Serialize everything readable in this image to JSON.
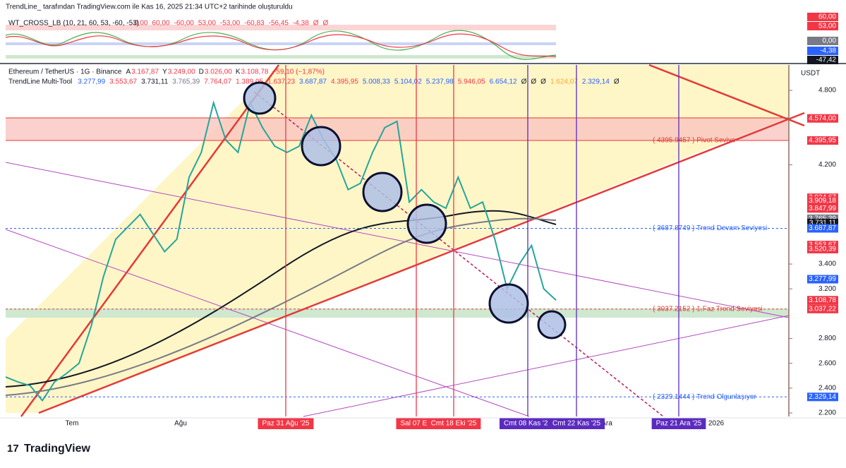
{
  "header": "TrendLine_ tarafından TradingView.com ile Kas 16, 2025 21:34 UTC+2 tarihinde oluşturuldu",
  "indicator": {
    "name": "WT_CROSS_LB (10, 21, 60, 53, -60, -53)",
    "values": [
      "0,00",
      "60,00",
      "-60,00",
      "53,00",
      "-53,00",
      "-60,83",
      "-56,45",
      "-4,38",
      "Ø",
      "Ø"
    ],
    "badges": [
      {
        "label": "60,00",
        "color": "#f23645"
      },
      {
        "label": "53,00",
        "color": "#f23645"
      },
      {
        "label": "0,00",
        "color": "#787b86"
      },
      {
        "label": "-4,38",
        "color": "#2962ff"
      },
      {
        "label": "-47,42",
        "color": "#131722"
      }
    ]
  },
  "symbol": {
    "name": "Ethereum / TetherUS · 1G · Binance",
    "ohlc": [
      {
        "key": "A",
        "value": "3.167,87"
      },
      {
        "key": "Y",
        "value": "3.249,00"
      },
      {
        "key": "D",
        "value": "3.026,00"
      },
      {
        "key": "K",
        "value": "3.108,78"
      }
    ],
    "change": "−59,10 (−1,87%)"
  },
  "multitool": {
    "name": "TrendLine Multi-Tool",
    "values": [
      "3.277,99",
      "3.553,67",
      "3.731,11",
      "3.765,39",
      "7.764,07",
      "1.389,05",
      "1.637,23",
      "3.687,87",
      "4.395,95",
      "5.008,33",
      "5.104,02",
      "5.237,98",
      "5.946,05",
      "6.654,12",
      "Ø",
      "Ø",
      "Ø",
      "1.624,07",
      "2.329,14",
      "Ø"
    ]
  },
  "currency": "USDT",
  "price_axis": {
    "ticks": [
      {
        "value": 4800,
        "label": "4.800"
      },
      {
        "value": 4200,
        "label": "4.200"
      },
      {
        "value": 3400,
        "label": "3.400"
      },
      {
        "value": 3200,
        "label": "3.200"
      },
      {
        "value": 2800,
        "label": "2.800"
      },
      {
        "value": 2600,
        "label": "2.600"
      },
      {
        "value": 2400,
        "label": "2.400"
      },
      {
        "value": 2200,
        "label": "2.200"
      }
    ],
    "badges": [
      {
        "value": 4574,
        "label": "4.574,00",
        "color": "#f23645"
      },
      {
        "value": 4395.95,
        "label": "4.395,95",
        "color": "#f23645"
      },
      {
        "value": 3934.67,
        "label": "3.934,67",
        "color": "#f23645"
      },
      {
        "value": 3909.18,
        "label": "3.909,18",
        "color": "#f23645"
      },
      {
        "value": 3847.99,
        "label": "3.847,99",
        "color": "#f23645"
      },
      {
        "value": 3765.39,
        "label": "3.765,39",
        "color": "#787b86"
      },
      {
        "value": 3731.11,
        "label": "3.731,11",
        "color": "#131722"
      },
      {
        "value": 3687.87,
        "label": "3.687,87",
        "color": "#2962ff"
      },
      {
        "value": 3553.67,
        "label": "3.553,67",
        "color": "#f23645"
      },
      {
        "value": 3520.39,
        "label": "3.520,39",
        "color": "#f23645"
      },
      {
        "value": 3277.99,
        "label": "3.277,99",
        "color": "#2962ff"
      },
      {
        "value": 3108.78,
        "label": "3.108,78",
        "color": "#f23645"
      },
      {
        "value": 3037.22,
        "label": "3.037,22",
        "color": "#f23645"
      },
      {
        "value": 2329.14,
        "label": "2.329,14",
        "color": "#2962ff"
      }
    ],
    "countdown": "04:25:55"
  },
  "annotations": [
    {
      "text": "( 4395.9457 ) Pivot Seviye",
      "value": 4395.9457
    },
    {
      "text": "( 3687.8749 ) Trend Devam Seviyesi",
      "value": 3687.8749
    },
    {
      "text": "( 3037.2152 ) 1.Faz Trend Seviyesi",
      "value": 3037.2152
    },
    {
      "text": "( 2329.1444 ) Trend Olgunlaşıyor",
      "value": 2329.1444
    }
  ],
  "price_samples": [
    2490,
    2450,
    2420,
    2300,
    2450,
    2520,
    2600,
    2900,
    3300,
    3600,
    3700,
    3800,
    3650,
    3500,
    3600,
    4100,
    4300,
    4700,
    4400,
    4300,
    4700,
    4500,
    4350,
    4300,
    4350,
    4600,
    4400,
    4250,
    4000,
    4050,
    4300,
    4500,
    4550,
    3900,
    4000,
    3900,
    3850,
    4100,
    3850,
    3900,
    3600,
    3200,
    3400,
    3550,
    3200,
    3108.78
  ],
  "time_axis": [
    "Tem",
    "Ağu",
    "Ara",
    "2026"
  ],
  "time_markers": [
    {
      "label": "Paz 31 Ağu '25",
      "color": "#f23645"
    },
    {
      "label": "Sal 07 Eki",
      "color": "#f23645"
    },
    {
      "label": "Cmt 18 Eki '25",
      "color": "#f23645"
    },
    {
      "label": "Cmt 08 Kas '25",
      "color": "#5b2bbf"
    },
    {
      "label": "Cmt 22 Kas '25",
      "color": "#5b2bbf"
    },
    {
      "label": "Paz 21 Ara '25",
      "color": "#5b2bbf"
    }
  ],
  "footer": "TradingView"
}
